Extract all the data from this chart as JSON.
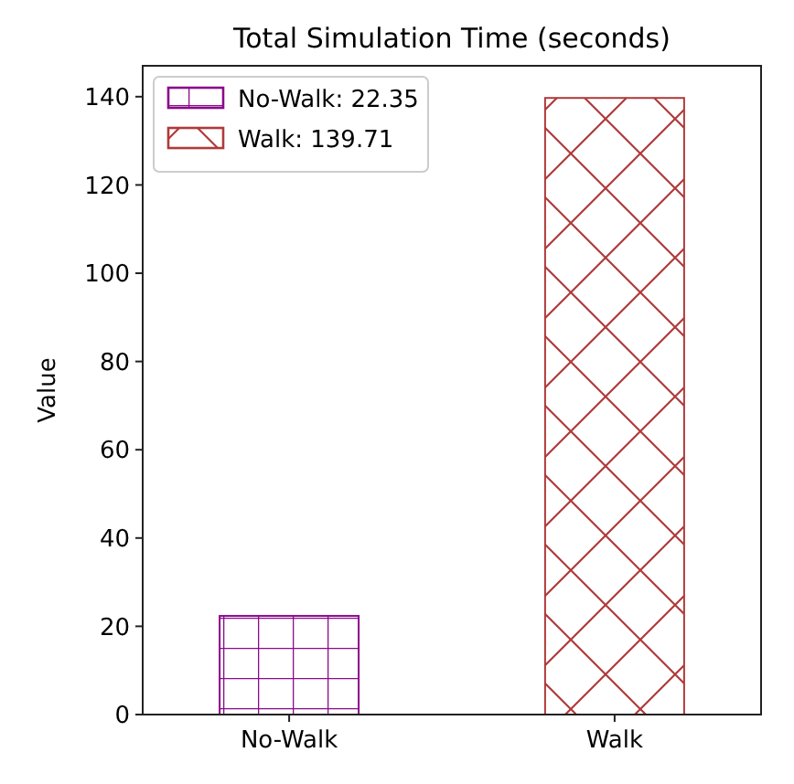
{
  "chart_data": {
    "type": "bar",
    "title": "Total Simulation Time (seconds)",
    "ylabel": "Value",
    "categories": [
      "No-Walk",
      "Walk"
    ],
    "series": [
      {
        "name": "No-Walk: 22.35",
        "color": "#8b0a8b",
        "values": [
          22.35,
          null
        ]
      },
      {
        "name": "Walk: 139.71",
        "color": "#b03a3a",
        "values": [
          null,
          139.71
        ]
      }
    ],
    "ylim": [
      0,
      147
    ],
    "yticks": [
      0,
      20,
      40,
      60,
      80,
      100,
      120,
      140
    ],
    "legend": "top left",
    "grid": false
  }
}
